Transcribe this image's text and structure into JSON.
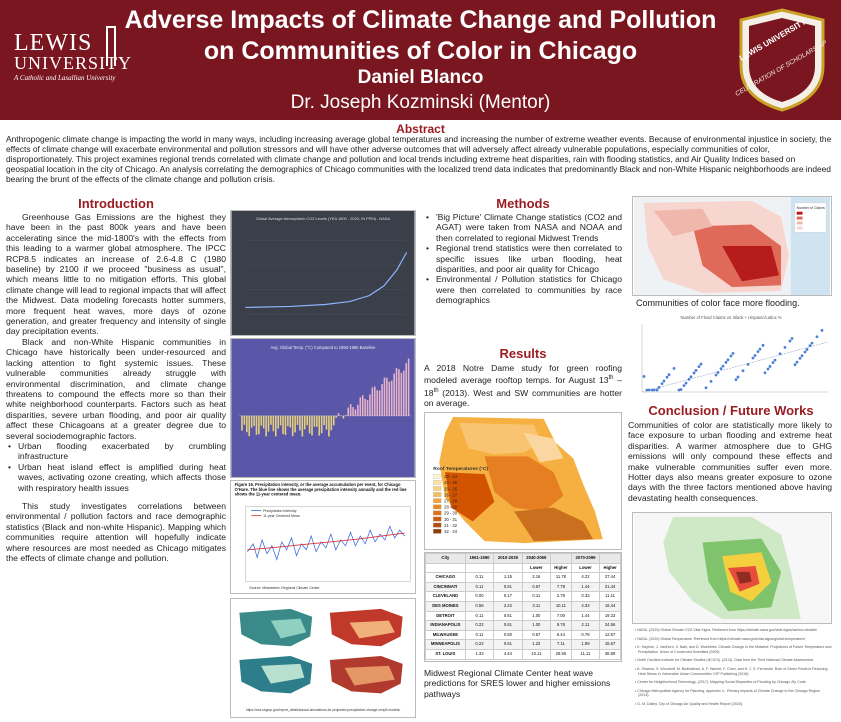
{
  "header": {
    "title_line1": "Adverse Impacts of Climate Change and Pollution",
    "title_line2": "on Communities of Color in Chicago",
    "author": "Daniel Blanco",
    "mentor": "Dr. Joseph Kozminski (Mentor)",
    "logo": {
      "line1": "LEWIS",
      "line2": "UNIVERSITY",
      "tagline": "A Catholic and Lasallian University"
    },
    "seal": {
      "arc_text": "LEWIS UNIVERSITY",
      "center_text": "CELEBRATION OF SCHOLARSHIP"
    }
  },
  "abstract": {
    "title": "Abstract",
    "text": "Anthropogenic climate change is impacting the world in many ways, including increasing average global temperatures and increasing the number of extreme weather events. Because of environmental injustice in society, the effects of climate change will exacerbate environmental and pollution stressors and will have other adverse outcomes that will adversely affect already vulnerable populations, especially communities of color, disproportionately. This project examines regional trends correlated with climate change and pollution and local trends including extreme heat disparities, rain with flooding statistics, and Air Quality Indices based on geospatial location in the city of Chicago. An analysis correlating the demographics of Chicago communities with the localized trend data indicates that predominantly Black and non-White Hispanic neighborhoods are indeed bearing the brunt of the effects of the climate change and pollution crisis."
  },
  "introduction": {
    "title": "Introduction",
    "p1": "Greenhouse Gas Emissions are the highest they have been in the past 800k years and have been accelerating since the mid-1800's with the effects from this leading to a warmer global atmosphere. The IPCC RCP8.5 indicates an increase of 2.6-4.8 C (1980 baseline) by 2100 if we proceed \"business as usual\", which means little to no mitigation efforts. This global climate change will lead to regional impacts that will affect the Midwest. Data modeling forecasts hotter summers, more frequent heat waves, more days of ozone generation, and greater frequency and intensity of single day precipitation events.",
    "p2": "Black and non-White Hispanic communities in Chicago have historically been under-resourced and lacking attention to fight systemic issues. These vulnerable communities already struggle with environmental discrimination, and climate change threatens to compound the effects more so than their white neighborhood counterparts. Factors such as heat disparities, severe urban flooding, and poor air quality affect these Chicagoans at a greater degree due to several sociodemographic factors.",
    "bullets": [
      "Urban flooding exacerbated by crumbling infrastructure",
      "Urban heat island effect is amplified during heat waves, activating ozone creating, which affects those with respiratory health issues"
    ],
    "p3": "This study investigates correlations between environmental / pollution factors and race demographic statistics (Black and non-white Hispanic). Mapping which communities require attention will hopefully indicate where resources are most needed as Chicago mitigates the effects of climate change and pollution."
  },
  "figures": {
    "co2_title": "Global Average Atmospheric CO2 Levels (YEA 1800 - 2020, IN PPM) - NASA",
    "temp_title": "Avg. Global Temp. (°C) Compared to 1950-1980 Baseline",
    "precip_title": "Figure 16. Precipitation intensity, or the average accumulation per event, for Chicago O'Hare. The blue line shows the average precipitation intensity annually and the red line shows the 11-year centered mean.",
    "precip_legend": [
      "Precipitation Intensity",
      "11-year Centered Mean"
    ],
    "precip_source": "Source: Midwestern Regional Climate Center",
    "maps_source": "https://nca.usgcrp.gov/report_detail/annual-simulations-for-projected-precipitation-change-cmip5-models/",
    "roof_legend_title": "Roof Temperatures (°C)",
    "roof_legend": [
      "23 - 24",
      "24 - 25",
      "25 - 26",
      "26 - 27",
      "27 - 28",
      "28 - 29",
      "29 - 30",
      "30 - 31",
      "31 - 32",
      "32 - 34"
    ],
    "flood_map_legend": "Number of Claims",
    "flood_scatter_title": "Number of Flood Claims vs. Black + Hispanic/Latinx %"
  },
  "methods": {
    "title": "Methods",
    "bullets": [
      "'Big Picture' Climate Change statistics (CO2 and AGAT) were taken from NASA and NOAA and then correlated to regional Midwest Trends",
      "Regional trend statistics were then correlated to specific issues like urban flooding, heat disparities, and poor air quality for Chicago",
      "Environmental / Pollution statistics for Chicago were then correlated to communities by race demographics"
    ]
  },
  "results": {
    "title": "Results",
    "text_before": "A 2018 Notre Dame study for green roofing modeled average rooftop temps. for August 13",
    "sup1": "th",
    "text_mid": " – 18",
    "sup2": "th",
    "text_after": " (2013). West and SW communities are hotter on average.",
    "table_caption": "Midwest Regional Climate Center heat wave predictions for SRES lower and higher emissions pathways"
  },
  "heat_table": {
    "headers": [
      "City",
      "1961-1990",
      "2010-2039",
      "2040-2069",
      "",
      "2070-2099",
      ""
    ],
    "subheaders": [
      "",
      "",
      "",
      "Lower",
      "Higher",
      "Lower",
      "Higher"
    ],
    "rows": [
      [
        "CHICAGO",
        "0.11",
        "1.15",
        "2.16",
        "11.78",
        "4.22",
        "27.44"
      ],
      [
        "CINCINNATI",
        "0.11",
        "0.61",
        "0.67",
        "7.78",
        "1.44",
        "21.44"
      ],
      [
        "CLEVELAND",
        "0.00",
        "0.17",
        "0.11",
        "2.78",
        "0.33",
        "11.11"
      ],
      [
        "DES MOINES",
        "0.56",
        "2.22",
        "3.11",
        "10.11",
        "4.33",
        "16.44"
      ],
      [
        "DETROIT",
        "0.11",
        "0.61",
        "1.00",
        "7.00",
        "1.44",
        "19.33"
      ],
      [
        "INDIANAPOLIS",
        "0.22",
        "0.61",
        "1.00",
        "9.78",
        "2.11",
        "24.56"
      ],
      [
        "MILWAUKEE",
        "0.11",
        "0.50",
        "0.67",
        "6.44",
        "0.78",
        "12.67"
      ],
      [
        "MINNEAPOLIS",
        "0.22",
        "0.61",
        "1.22",
        "7.11",
        "1.89",
        "15.67"
      ],
      [
        "ST. LOUIS",
        "1.33",
        "4.44",
        "10.11",
        "28.56",
        "11.11",
        "36.89"
      ]
    ]
  },
  "flood_caption": "Communities of color face more flooding.",
  "conclusion": {
    "title": "Conclusion / Future Works",
    "text": "Communities of color are statistically more likely to face exposure to urban flooding and extreme heat disparities. A warmer atmosphere due to GHG emissions will only compound these effects and make vulnerable communities suffer even more. Hotter days also means greater exposure to ozone days with the three factors mentioned above having devastating health consequences."
  },
  "references": [
    "NASA. (2020) Global Climate CO2 Vital Signs. Retrieved from https://climate.nasa.gov/vital-signs/carbon-dioxide/",
    "NASA. (2020) Global Temperature. Retrieved from https://climate.nasa.gov/vital-signs/global-temperature/",
    "K. Hayhoe, J. VanDorn, V. Naik, and D. Wuebbles. Climate Change in the Midwest: Projections of Future Temperature and Precipitation. Union of Concerned Scientists (2009).",
    "North Carolina Institute for Climate Studies (NCICS). (2013). Data from the Third National Climate Assessment.",
    "A. Sharma, S. Woodruff, M. Budhathoki, A. F. Hamlet, F. Chen, and H. J. S. Fernando. Role of Green Roofs in Reducing Heat Stress in Vulnerable Urban Communities. IOP Publishing (2018).",
    "Center for Neighborhood Technology. (2017). Mapping Social Disparities of Flooding by Chicago Zip Code.",
    "Chicago Metropolitan Agency for Planning, appendix 4 - Primary impacts of Climate Change to the Chicago Region (2013).",
    "G. M. Dailey. City of Chicago Air Quality and Health Report (2020)."
  ],
  "colors": {
    "header_bg": "#7a1620",
    "section_title": "#9b1c22",
    "plot_bg": "#3a3f4a",
    "temp_bg": "#5a56a8"
  }
}
